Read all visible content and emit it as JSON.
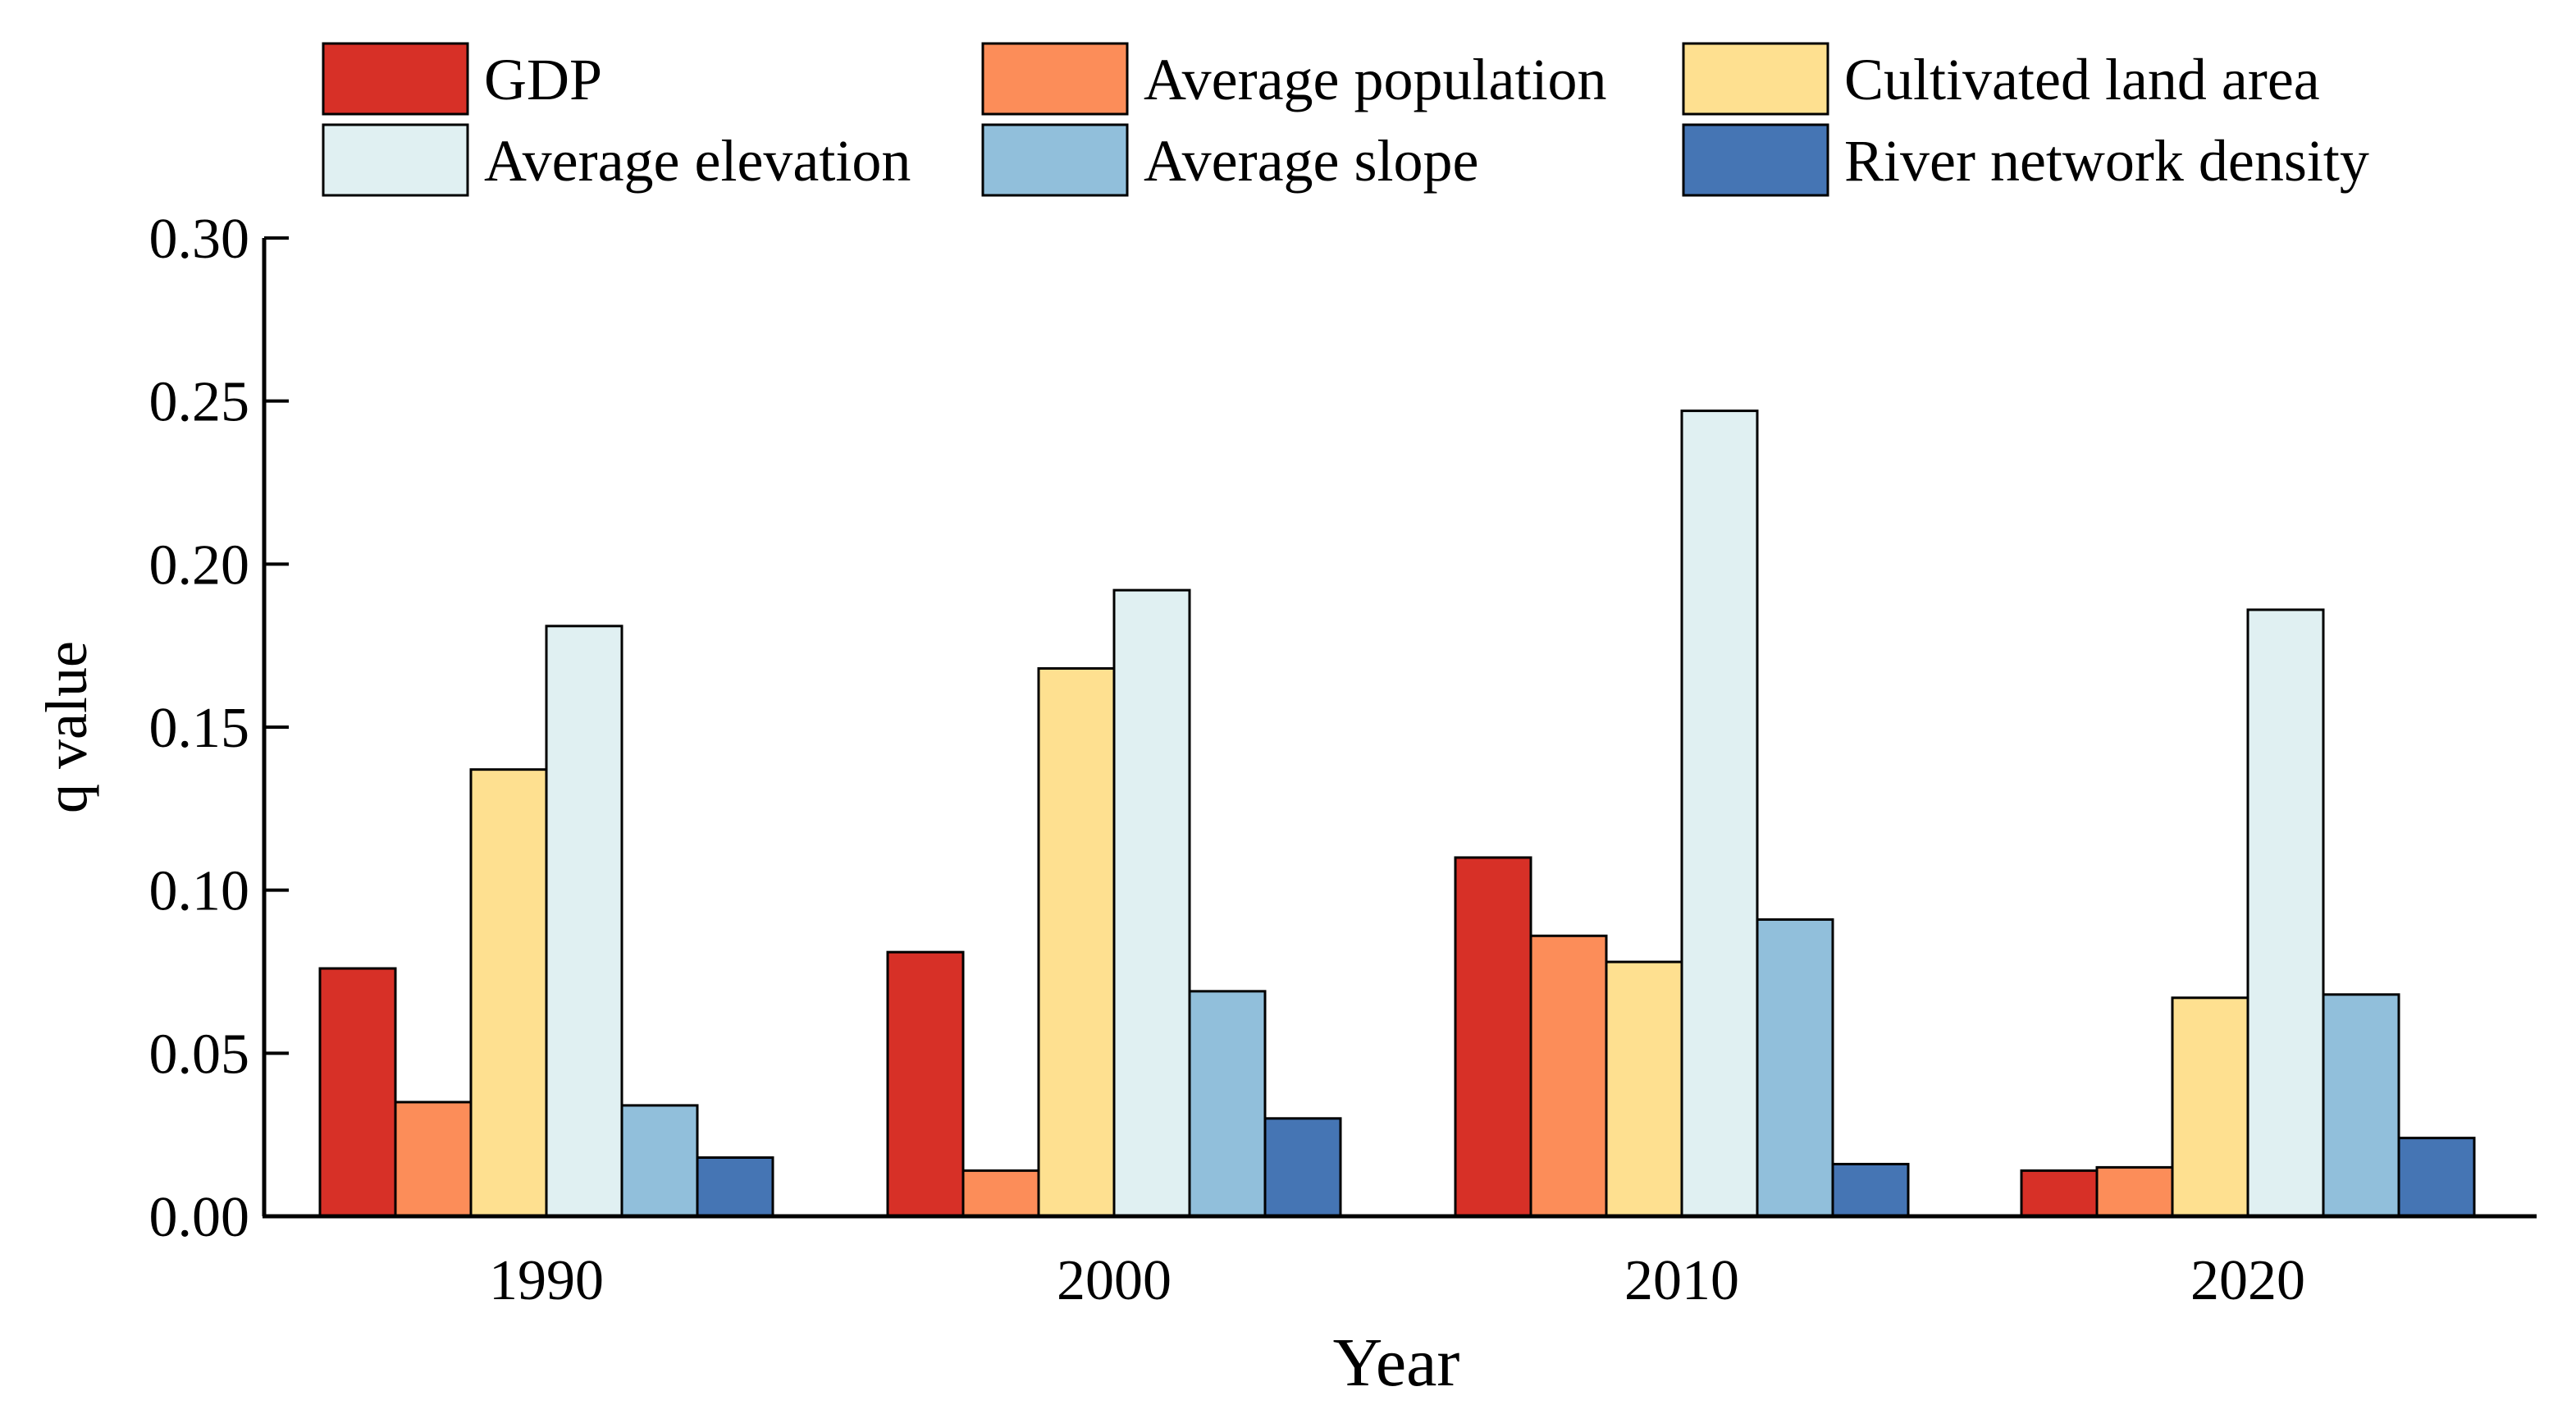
{
  "chart_data": {
    "type": "bar",
    "title": "",
    "xlabel": "Year",
    "ylabel": "q value",
    "categories": [
      "1990",
      "2000",
      "2010",
      "2020"
    ],
    "ylim": [
      0,
      0.3
    ],
    "yticks": [
      "0.00",
      "0.05",
      "0.10",
      "0.15",
      "0.20",
      "0.25",
      "0.30"
    ],
    "grid": false,
    "legend_position": "top",
    "series": [
      {
        "name": "GDP",
        "color": "#d73027",
        "values": [
          0.076,
          0.081,
          0.11,
          0.014
        ]
      },
      {
        "name": "Average population",
        "color": "#fc8d59",
        "values": [
          0.035,
          0.014,
          0.086,
          0.015
        ]
      },
      {
        "name": "Cultivated land area",
        "color": "#fee090",
        "values": [
          0.137,
          0.168,
          0.078,
          0.067
        ]
      },
      {
        "name": "Average elevation",
        "color": "#e0f0f2",
        "values": [
          0.181,
          0.192,
          0.247,
          0.186
        ]
      },
      {
        "name": "Average slope",
        "color": "#91bfdb",
        "values": [
          0.034,
          0.069,
          0.091,
          0.068
        ]
      },
      {
        "name": "River network density",
        "color": "#4575b4",
        "values": [
          0.018,
          0.03,
          0.016,
          0.024
        ]
      }
    ]
  }
}
